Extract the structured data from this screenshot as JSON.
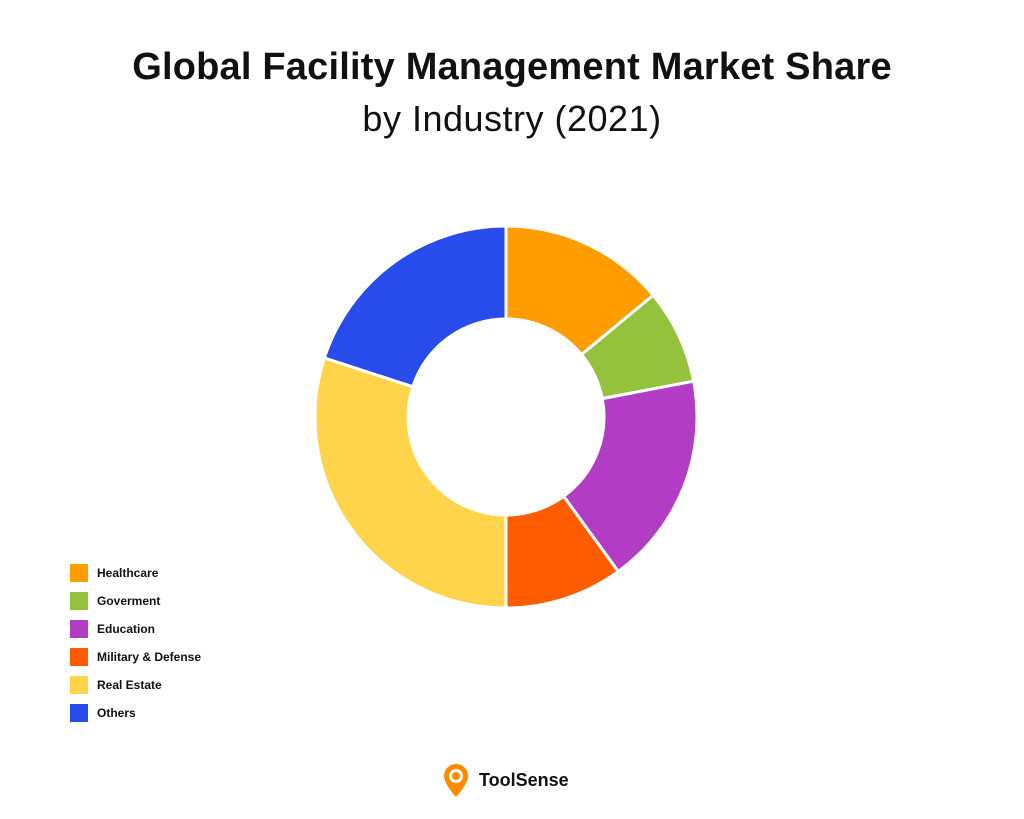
{
  "chart_data": {
    "type": "pie",
    "variant": "donut",
    "title": "Global Facility Management Market Share",
    "subtitle": "by Industry (2021)",
    "categories": [
      "Healthcare",
      "Goverment",
      "Education",
      "Military & Defense",
      "Real Estate",
      "Others"
    ],
    "values": [
      14,
      8,
      18,
      10,
      30,
      20
    ],
    "value_unit": "%",
    "colors": [
      "#FF9D00",
      "#95C23D",
      "#B23DC4",
      "#FF5C00",
      "#FFD34A",
      "#274CEB"
    ],
    "legend_position": "bottom-left",
    "start_angle_deg": 0,
    "direction": "clockwise"
  },
  "branding": {
    "name": "ToolSense",
    "icon": "location-pin-icon",
    "icon_color": "#FF8A00"
  }
}
